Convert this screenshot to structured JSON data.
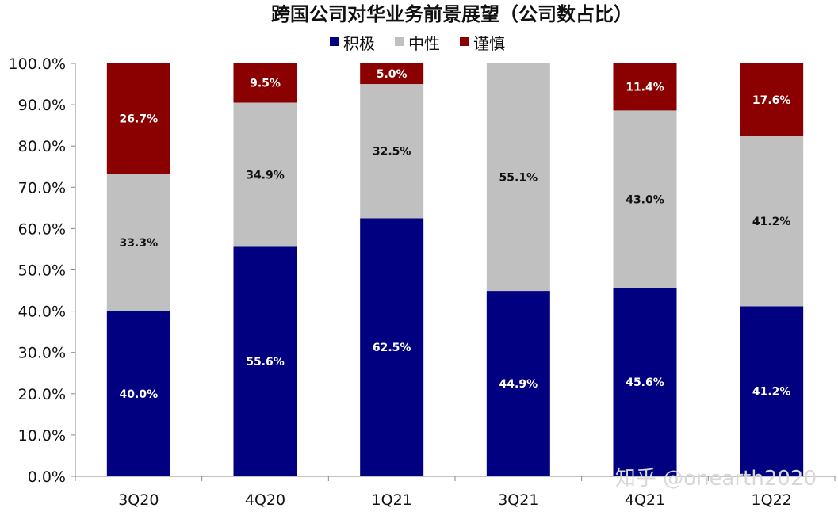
{
  "chart_data": {
    "type": "bar",
    "stacked": true,
    "title": "跨国公司对华业务前景展望（公司数占比）",
    "categories": [
      "3Q20",
      "4Q20",
      "1Q21",
      "3Q21",
      "4Q21",
      "1Q22"
    ],
    "series": [
      {
        "name": "积极",
        "color": "#000080",
        "values": [
          40.0,
          55.6,
          62.5,
          44.9,
          45.6,
          41.2
        ],
        "labels": [
          "40.0%",
          "55.6%",
          "62.5%",
          "44.9%",
          "45.6%",
          "41.2%"
        ]
      },
      {
        "name": "中性",
        "color": "#c0c0c0",
        "values": [
          33.3,
          34.9,
          32.5,
          55.1,
          43.0,
          41.2
        ],
        "labels": [
          "33.3%",
          "34.9%",
          "32.5%",
          "55.1%",
          "43.0%",
          "41.2%"
        ]
      },
      {
        "name": "谨慎",
        "color": "#8b0000",
        "values": [
          26.7,
          9.5,
          5.0,
          0,
          11.4,
          17.6
        ],
        "labels": [
          "26.7%",
          "9.5%",
          "5.0%",
          "",
          "11.4%",
          "17.6%"
        ]
      }
    ],
    "ylim": [
      0,
      100
    ],
    "yticks": [
      "0.0%",
      "10.0%",
      "20.0%",
      "30.0%",
      "40.0%",
      "50.0%",
      "60.0%",
      "70.0%",
      "80.0%",
      "90.0%",
      "100.0%"
    ],
    "legend_position": "top-center",
    "grid": false
  },
  "watermark": "知乎 @onearth2020"
}
